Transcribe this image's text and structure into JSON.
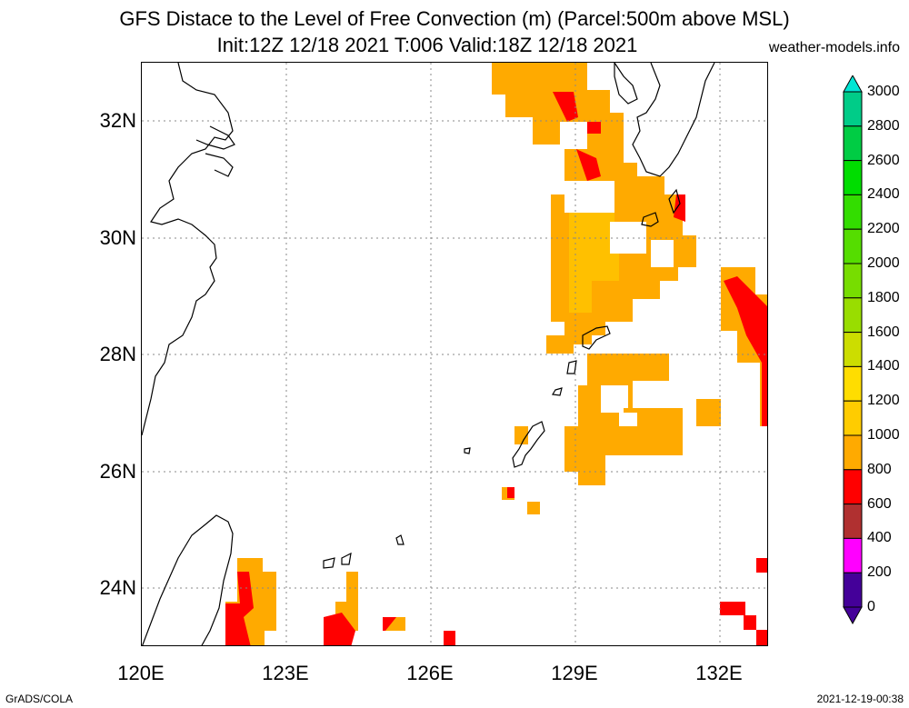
{
  "title": {
    "line1": "GFS Distace to the Level of Free Convection (m) (Parcel:500m above MSL)",
    "line2": "Init:12Z 12/18 2021 T:006 Valid:18Z 12/18 2021",
    "credit": "weather-models.info"
  },
  "footer": {
    "left": "GrADS/COLA",
    "right": "2021-12-19-00:38"
  },
  "map": {
    "lon_range": [
      120,
      133
    ],
    "lat_range": [
      23,
      33
    ],
    "lat_labels": [
      "24N",
      "26N",
      "28N",
      "30N",
      "32N"
    ],
    "lon_labels": [
      "120E",
      "123E",
      "126E",
      "129E",
      "132E"
    ]
  },
  "colorbar": {
    "labels": [
      "3000",
      "2800",
      "2600",
      "2400",
      "2200",
      "2000",
      "1800",
      "1600",
      "1400",
      "1200",
      "1000",
      "800",
      "600",
      "400",
      "200",
      "0"
    ],
    "colors": [
      "#00e5d4",
      "#00cc88",
      "#00cc44",
      "#00dd00",
      "#33dd00",
      "#55dd00",
      "#77dd00",
      "#99dd00",
      "#ccdd00",
      "#ffdd00",
      "#ffcc00",
      "#ffaa00",
      "#ff0000",
      "#b03030",
      "#ff00ff",
      "#440099"
    ]
  },
  "colors": {
    "orange": "#ffaa00",
    "yellow": "#ffc000",
    "red": "#ff0000",
    "grid": "#888888"
  }
}
